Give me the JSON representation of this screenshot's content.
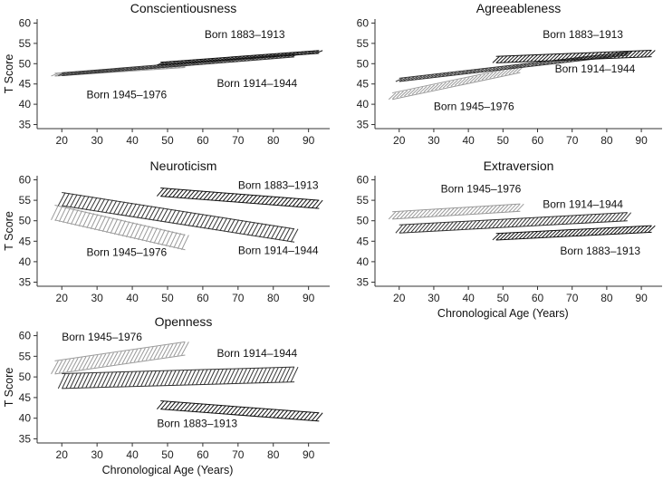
{
  "chart_data": [
    {
      "type": "line",
      "title": "Conscientiousness",
      "ylabel": "T Score",
      "xlabel": "",
      "xlim": [
        13,
        96
      ],
      "ylim": [
        34,
        61
      ],
      "xticks": [
        20,
        30,
        40,
        50,
        60,
        70,
        80,
        90
      ],
      "yticks": [
        35,
        40,
        45,
        50,
        55,
        60
      ],
      "series": [
        {
          "name": "Born 1945–1976",
          "x": [
            18,
            55
          ],
          "y": [
            47.3,
            49.4
          ],
          "band": 0.3,
          "color": "#9a9a9a"
        },
        {
          "name": "Born 1914–1944",
          "x": [
            20,
            86
          ],
          "y": [
            47.4,
            52.0
          ],
          "band": 0.3,
          "color": "#333333"
        },
        {
          "name": "Born 1883–1913",
          "x": [
            48,
            93
          ],
          "y": [
            50.0,
            52.9
          ],
          "band": 0.3,
          "color": "#111111"
        }
      ],
      "annotations": [
        {
          "text": "Born 1883–1913",
          "x": 60.5,
          "y": 56.3
        },
        {
          "text": "Born 1945–1976",
          "x": 27,
          "y": 41.5
        },
        {
          "text": "Born 1914–1944",
          "x": 64,
          "y": 44.3
        }
      ]
    },
    {
      "type": "line",
      "title": "Agreeableness",
      "ylabel": "",
      "xlabel": "",
      "xlim": [
        13,
        96
      ],
      "ylim": [
        34,
        61
      ],
      "xticks": [
        20,
        30,
        40,
        50,
        60,
        70,
        80,
        90
      ],
      "yticks": [
        35,
        40,
        45,
        50,
        55,
        60
      ],
      "series": [
        {
          "name": "Born 1945–1976",
          "x": [
            18,
            55
          ],
          "y": [
            42.0,
            48.6
          ],
          "band": 0.8,
          "color": "#9a9a9a"
        },
        {
          "name": "Born 1914–1944",
          "x": [
            20,
            86
          ],
          "y": [
            46.0,
            52.5
          ],
          "band": 0.4,
          "color": "#333333"
        },
        {
          "name": "Born 1883–1913",
          "x": [
            48,
            93
          ],
          "y": [
            51.0,
            52.5
          ],
          "band": 0.8,
          "color": "#111111"
        }
      ],
      "annotations": [
        {
          "text": "Born 1883–1913",
          "x": 61.5,
          "y": 56.3
        },
        {
          "text": "Born 1914–1944",
          "x": 65,
          "y": 47.8
        },
        {
          "text": "Born 1945–1976",
          "x": 30,
          "y": 38.6
        }
      ]
    },
    {
      "type": "line",
      "title": "Neuroticism",
      "ylabel": "T Score",
      "xlabel": "",
      "xlim": [
        13,
        96
      ],
      "ylim": [
        34,
        61
      ],
      "xticks": [
        20,
        30,
        40,
        50,
        60,
        70,
        80,
        90
      ],
      "yticks": [
        35,
        40,
        45,
        50,
        55,
        60
      ],
      "series": [
        {
          "name": "Born 1945–1976",
          "x": [
            18,
            55
          ],
          "y": [
            52.0,
            44.7
          ],
          "band": 1.8,
          "color": "#9a9a9a"
        },
        {
          "name": "Born 1914–1944",
          "x": [
            20,
            86
          ],
          "y": [
            55.3,
            46.4
          ],
          "band": 1.6,
          "color": "#333333"
        },
        {
          "name": "Born 1883–1913",
          "x": [
            48,
            93
          ],
          "y": [
            57.0,
            54.0
          ],
          "band": 1.0,
          "color": "#111111"
        }
      ],
      "annotations": [
        {
          "text": "Born 1883–1913",
          "x": 70,
          "y": 57.8
        },
        {
          "text": "Born 1945–1976",
          "x": 27,
          "y": 41.4
        },
        {
          "text": "Born 1914–1944",
          "x": 70,
          "y": 41.9
        }
      ]
    },
    {
      "type": "line",
      "title": "Extraversion",
      "ylabel": "",
      "xlabel": "Chronological Age (Years)",
      "xlim": [
        13,
        96
      ],
      "ylim": [
        34,
        61
      ],
      "xticks": [
        20,
        30,
        40,
        50,
        60,
        70,
        80,
        90
      ],
      "yticks": [
        35,
        40,
        45,
        50,
        55,
        60
      ],
      "series": [
        {
          "name": "Born 1945–1976",
          "x": [
            18,
            55
          ],
          "y": [
            51.3,
            53.2
          ],
          "band": 0.9,
          "color": "#9a9a9a"
        },
        {
          "name": "Born 1914–1944",
          "x": [
            20,
            86
          ],
          "y": [
            48.0,
            51.0
          ],
          "band": 1.0,
          "color": "#333333"
        },
        {
          "name": "Born 1883–1913",
          "x": [
            48,
            93
          ],
          "y": [
            46.1,
            48.0
          ],
          "band": 0.8,
          "color": "#111111"
        }
      ],
      "annotations": [
        {
          "text": "Born 1945–1976",
          "x": 32,
          "y": 56.9
        },
        {
          "text": "Born 1914–1944",
          "x": 61.5,
          "y": 53.1
        },
        {
          "text": "Born 1883–1913",
          "x": 66.5,
          "y": 41.8
        }
      ]
    },
    {
      "type": "line",
      "title": "Openness",
      "ylabel": "T Score",
      "xlabel": "Chronological Age (Years)",
      "xlim": [
        13,
        96
      ],
      "ylim": [
        34,
        61
      ],
      "xticks": [
        20,
        30,
        40,
        50,
        60,
        70,
        80,
        90
      ],
      "yticks": [
        35,
        40,
        45,
        50,
        55,
        60
      ],
      "series": [
        {
          "name": "Born 1945–1976",
          "x": [
            18,
            55
          ],
          "y": [
            52.3,
            56.9
          ],
          "band": 1.6,
          "color": "#9a9a9a"
        },
        {
          "name": "Born 1914–1944",
          "x": [
            20,
            86
          ],
          "y": [
            49.0,
            50.6
          ],
          "band": 1.8,
          "color": "#333333"
        },
        {
          "name": "Born 1883–1913",
          "x": [
            48,
            93
          ],
          "y": [
            43.2,
            40.3
          ],
          "band": 1.0,
          "color": "#111111"
        }
      ],
      "annotations": [
        {
          "text": "Born 1945–1976",
          "x": 20,
          "y": 58.8
        },
        {
          "text": "Born 1914–1944",
          "x": 64,
          "y": 54.8
        },
        {
          "text": "Born 1883–1913",
          "x": 47,
          "y": 37.8
        }
      ]
    }
  ]
}
